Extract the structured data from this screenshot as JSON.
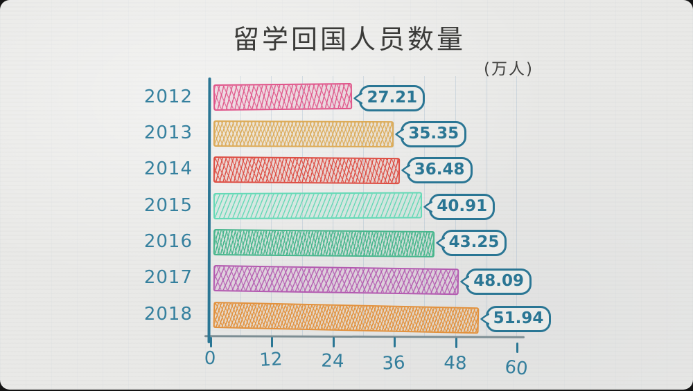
{
  "chart": {
    "title": "留学回国人员数量",
    "unit_label": "(万人)",
    "x_tick_labels": [
      "0",
      "12",
      "24",
      "36",
      "48",
      "60"
    ],
    "colors": {
      "ink_teal": "#2a7694",
      "title_ink": "#3b3b39",
      "paper": "#e9e9e7",
      "axis_gray": "#7d8e94"
    }
  },
  "chart_data": {
    "type": "bar",
    "orientation": "horizontal",
    "title": "留学回国人员数量",
    "unit": "万人",
    "categories": [
      "2012",
      "2013",
      "2014",
      "2015",
      "2016",
      "2017",
      "2018"
    ],
    "values": [
      27.21,
      35.35,
      36.48,
      40.91,
      43.25,
      48.09,
      51.94
    ],
    "value_labels": [
      "27.21",
      "35.35",
      "36.48",
      "40.91",
      "43.25",
      "48.09",
      "51.94"
    ],
    "bar_colors": [
      "#e0558a",
      "#dcab58",
      "#dd4f45",
      "#64d9b6",
      "#48b68d",
      "#b35ab0",
      "#e2913d"
    ],
    "xlim": [
      0,
      60
    ],
    "x_tick_step": 12,
    "grid": true,
    "legend": false
  }
}
